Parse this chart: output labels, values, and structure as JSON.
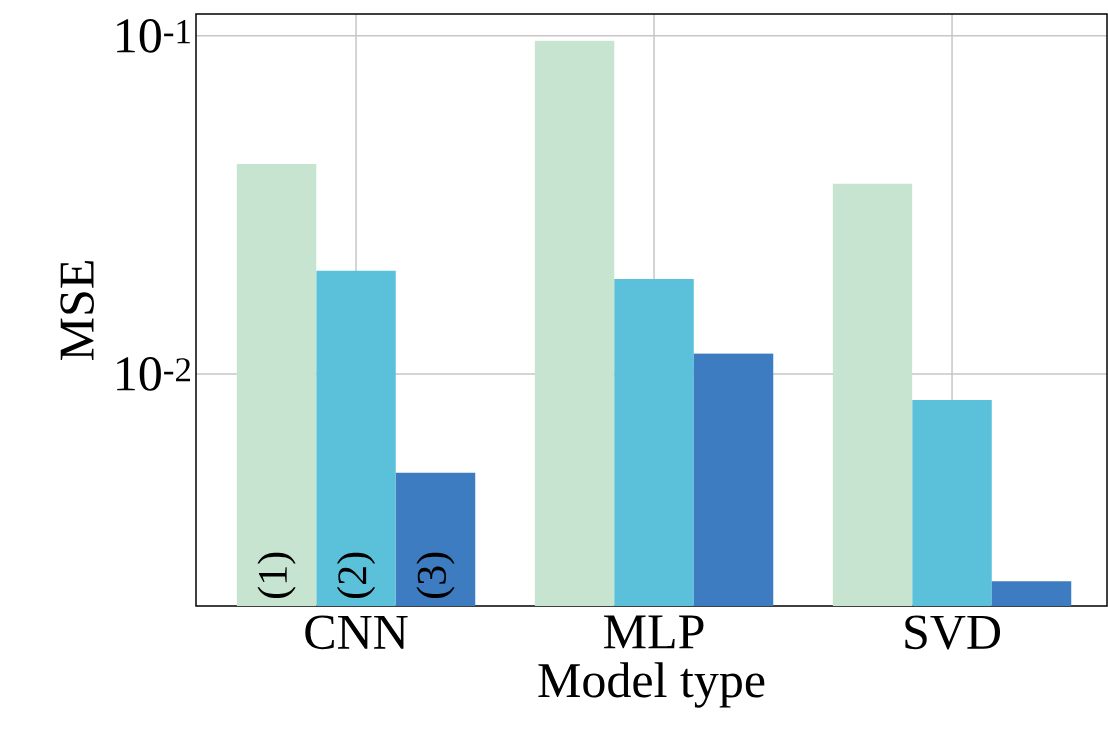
{
  "chart_data": {
    "type": "bar",
    "xlabel": "Model type",
    "ylabel": "MSE",
    "categories": [
      "CNN",
      "MLP",
      "SVD"
    ],
    "series": [
      {
        "name": "(1)",
        "color": "#c6e4d0",
        "values": [
          0.0418,
          0.0967,
          0.0365
        ]
      },
      {
        "name": "(2)",
        "color": "#5bc1db",
        "values": [
          0.0202,
          0.0191,
          0.00838
        ]
      },
      {
        "name": "(3)",
        "color": "#3d7cc0",
        "values": [
          0.0051,
          0.0115,
          0.00244
        ]
      }
    ],
    "log": true,
    "ylim": [
      0.00206,
      0.116
    ],
    "yticks": [
      {
        "value": 0.01,
        "label": "10$^{-2}$"
      },
      {
        "value": 0.1,
        "label": "10$^{-1}$"
      }
    ],
    "grid": true
  }
}
